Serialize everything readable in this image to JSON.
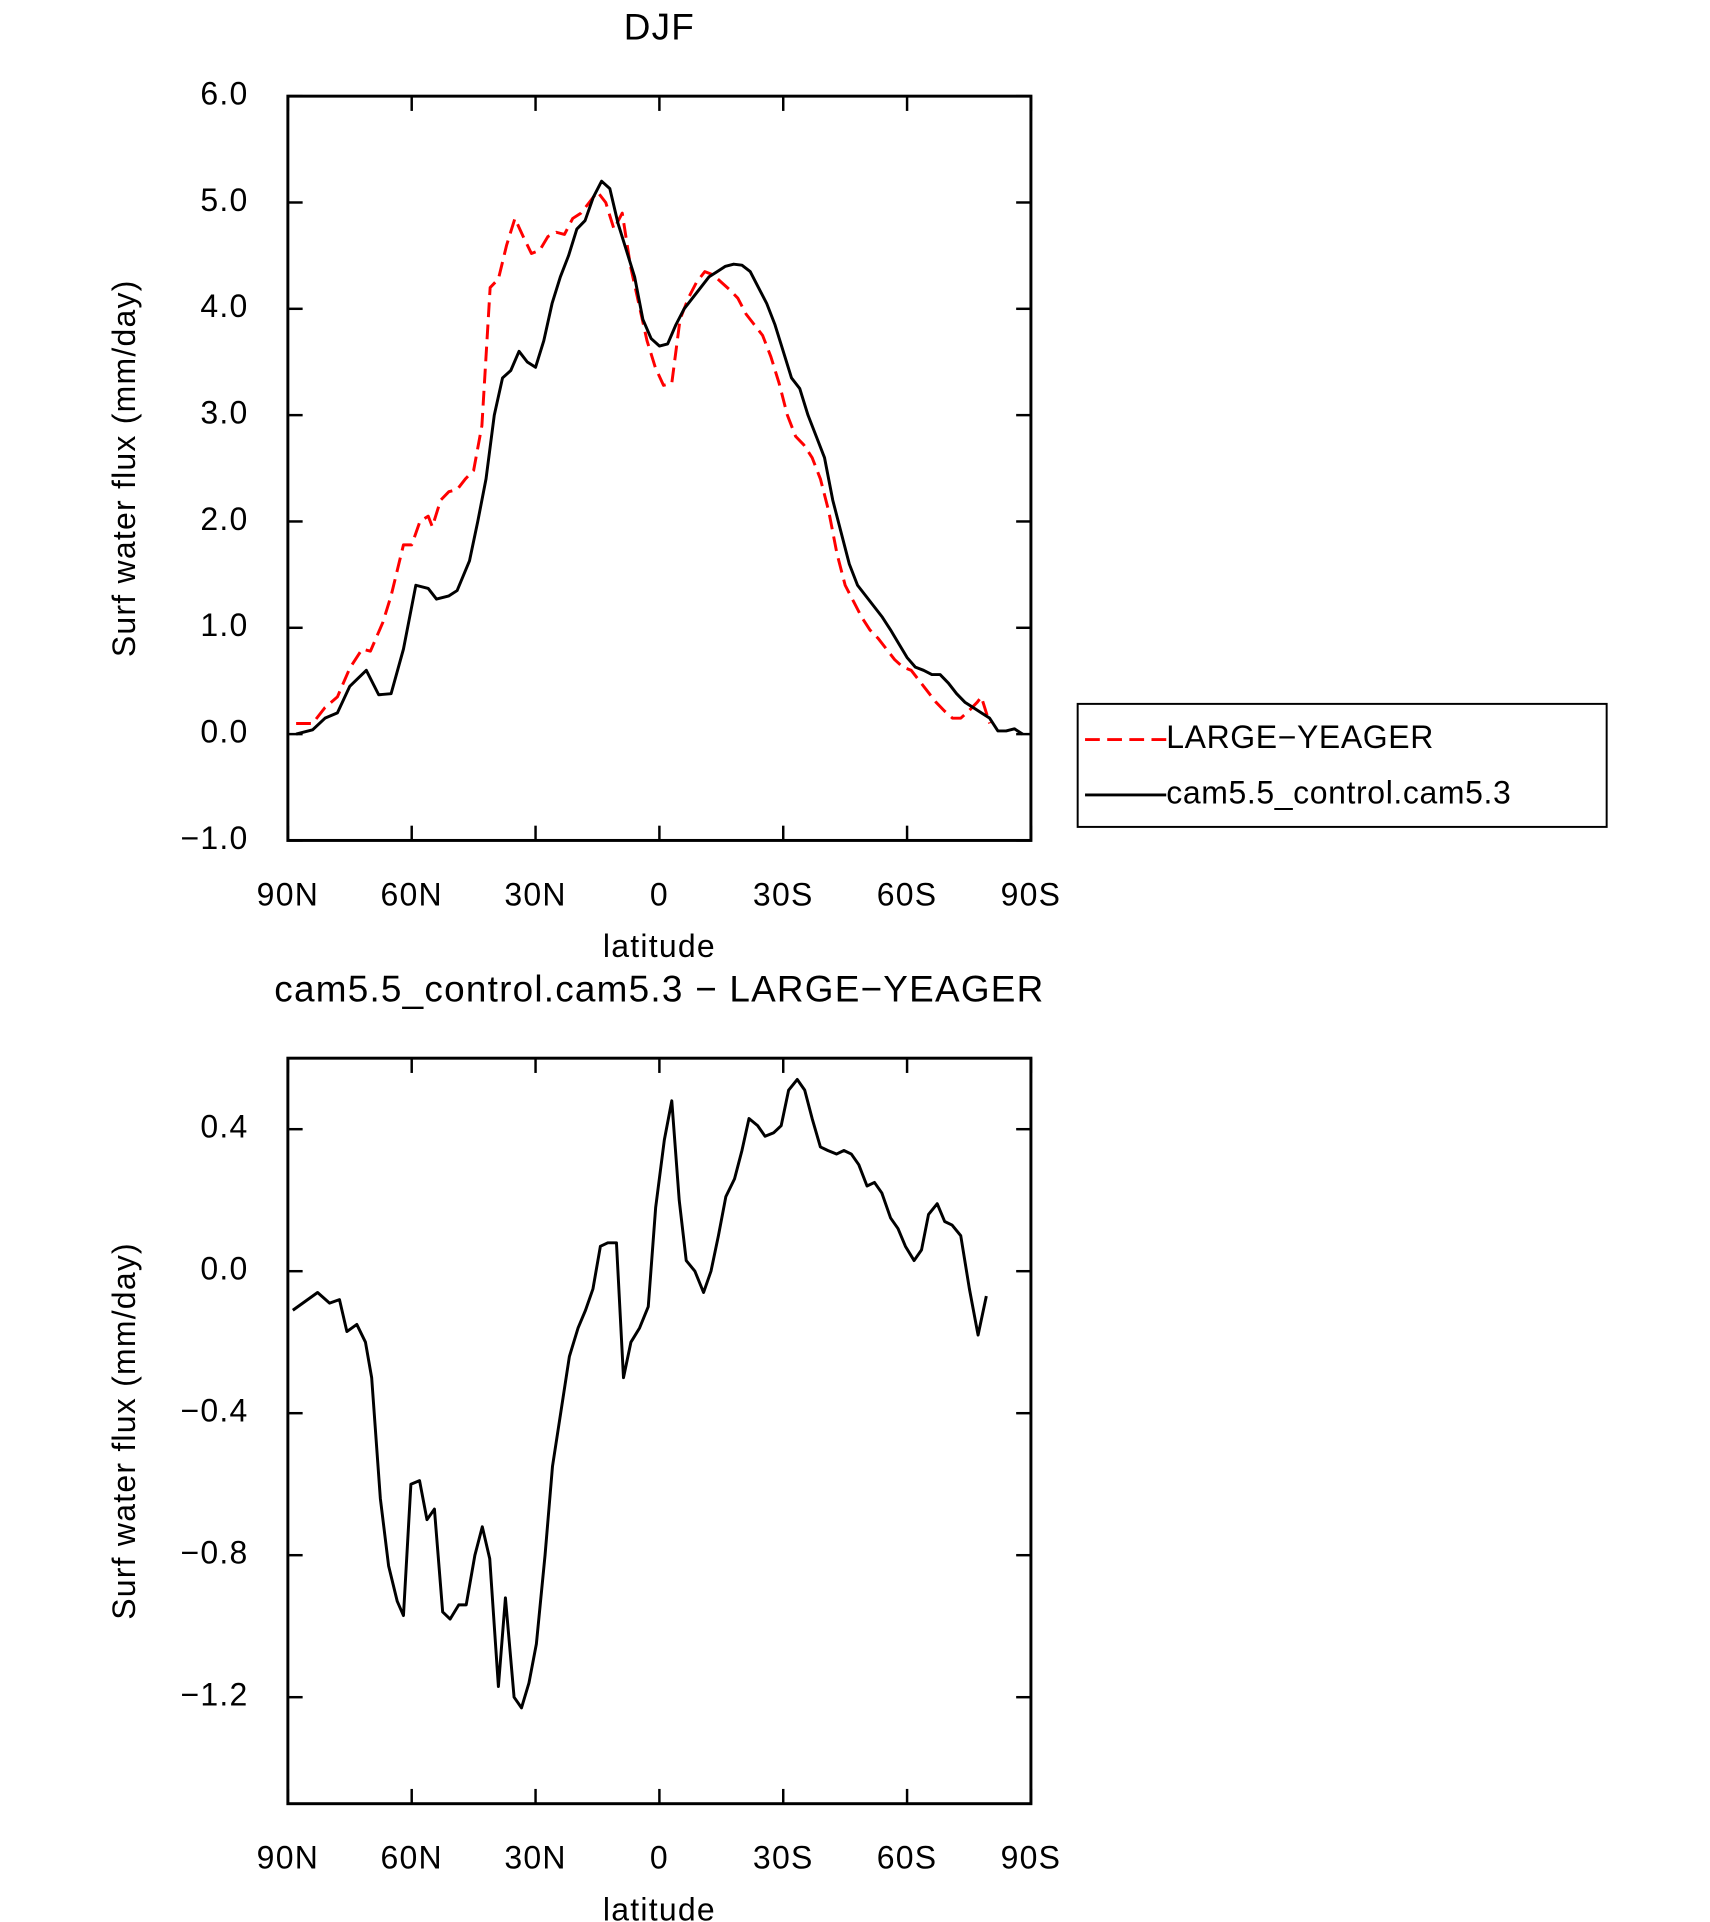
{
  "chart_data": [
    {
      "type": "line",
      "title": "DJF",
      "xlabel": "latitude",
      "ylabel": "Surf water flux (mm/day)",
      "xlim": [
        90,
        -90
      ],
      "xticks": [
        {
          "value": 90,
          "label": "90N"
        },
        {
          "value": 60,
          "label": "60N"
        },
        {
          "value": 30,
          "label": "30N"
        },
        0,
        {
          "value": -30,
          "label": "30S"
        },
        {
          "value": -60,
          "label": "60S"
        },
        {
          "value": -90,
          "label": "90S"
        }
      ],
      "ylim": [
        -1,
        6
      ],
      "yticks": [
        {
          "value": -1,
          "label": "−1.0"
        },
        {
          "value": 0,
          "label": "0.0"
        },
        {
          "value": 1,
          "label": "1.0"
        },
        {
          "value": 2,
          "label": "2.0"
        },
        {
          "value": 3,
          "label": "3.0"
        },
        {
          "value": 4,
          "label": "4.0"
        },
        {
          "value": 5,
          "label": "5.0"
        },
        {
          "value": 6,
          "label": "6.0"
        }
      ],
      "legend": "outside right",
      "series": [
        {
          "name": "LARGE−YEAGER",
          "color": "#ff0000",
          "line_style": "dashed",
          "x": [
            88,
            84,
            81,
            78,
            75,
            72,
            70,
            67,
            65,
            62,
            60,
            58,
            56,
            55,
            53,
            51,
            49,
            47,
            45,
            43,
            41,
            39,
            37,
            35,
            33,
            31,
            29,
            27,
            25,
            23,
            21,
            19,
            17,
            15,
            13,
            11,
            9,
            7,
            5,
            3,
            1,
            -1,
            -3,
            -5,
            -7,
            -9,
            -11,
            -13,
            -15,
            -17,
            -19,
            -21,
            -23,
            -25,
            -27,
            -29,
            -31,
            -33,
            -35,
            -37,
            -39,
            -41,
            -43,
            -45,
            -47,
            -49,
            -51,
            -53,
            -55,
            -57,
            -59,
            -61,
            -63,
            -65,
            -67,
            -69,
            -71,
            -73,
            -75,
            -77,
            -78,
            -80
          ],
          "values": [
            0.1,
            0.1,
            0.25,
            0.35,
            0.62,
            0.8,
            0.78,
            1.05,
            1.3,
            1.78,
            1.78,
            2.0,
            2.05,
            1.95,
            2.2,
            2.28,
            2.3,
            2.4,
            2.48,
            2.9,
            4.2,
            4.28,
            4.6,
            4.85,
            4.68,
            4.52,
            4.55,
            4.68,
            4.72,
            4.7,
            4.85,
            4.9,
            5.0,
            5.1,
            5.0,
            4.75,
            4.9,
            4.4,
            4.05,
            3.7,
            3.45,
            3.28,
            3.3,
            3.9,
            4.1,
            4.25,
            4.35,
            4.32,
            4.25,
            4.18,
            4.1,
            3.95,
            3.85,
            3.75,
            3.55,
            3.3,
            3.0,
            2.8,
            2.72,
            2.6,
            2.4,
            2.1,
            1.7,
            1.4,
            1.25,
            1.1,
            0.98,
            0.9,
            0.8,
            0.7,
            0.63,
            0.6,
            0.5,
            0.4,
            0.3,
            0.22,
            0.15,
            0.15,
            0.22,
            0.3,
            0.35,
            0.1
          ]
        },
        {
          "name": "cam5.5_control.cam5.3",
          "color": "#000000",
          "line_style": "solid",
          "x": [
            88,
            84,
            81,
            78,
            75,
            71,
            68,
            65,
            62,
            59,
            56,
            54,
            51,
            49,
            46,
            44,
            42,
            40,
            38,
            36,
            34,
            32,
            30,
            28,
            26,
            24,
            22,
            20,
            18,
            16,
            14,
            12,
            10,
            8,
            6,
            4,
            2,
            0,
            -2,
            -4,
            -6,
            -8,
            -10,
            -12,
            -14,
            -16,
            -18,
            -20,
            -22,
            -24,
            -26,
            -28,
            -30,
            -32,
            -34,
            -36,
            -38,
            -40,
            -42,
            -44,
            -46,
            -48,
            -50,
            -52,
            -54,
            -56,
            -58,
            -60,
            -62,
            -64,
            -66,
            -68,
            -70,
            -72,
            -74,
            -76,
            -78,
            -80,
            -82,
            -84,
            -86,
            -88
          ],
          "values": [
            0.0,
            0.04,
            0.15,
            0.2,
            0.45,
            0.6,
            0.37,
            0.38,
            0.8,
            1.4,
            1.37,
            1.27,
            1.3,
            1.35,
            1.63,
            2.0,
            2.4,
            3.0,
            3.35,
            3.42,
            3.6,
            3.5,
            3.45,
            3.7,
            4.05,
            4.3,
            4.5,
            4.75,
            4.83,
            5.05,
            5.2,
            5.13,
            4.8,
            4.55,
            4.3,
            3.9,
            3.72,
            3.65,
            3.67,
            3.85,
            4.0,
            4.1,
            4.2,
            4.3,
            4.35,
            4.4,
            4.42,
            4.41,
            4.35,
            4.2,
            4.05,
            3.85,
            3.6,
            3.35,
            3.25,
            3.0,
            2.8,
            2.6,
            2.2,
            1.9,
            1.6,
            1.4,
            1.3,
            1.2,
            1.1,
            0.98,
            0.85,
            0.72,
            0.63,
            0.6,
            0.56,
            0.56,
            0.48,
            0.38,
            0.3,
            0.25,
            0.2,
            0.15,
            0.03,
            0.03,
            0.05,
            0.0
          ]
        }
      ]
    },
    {
      "type": "line",
      "title": "cam5.5_control.cam5.3 − LARGE−YEAGER",
      "xlabel": "latitude",
      "ylabel": "Surf water flux (mm/day)",
      "xlim": [
        90,
        -90
      ],
      "xticks": [
        {
          "value": 90,
          "label": "90N"
        },
        {
          "value": 60,
          "label": "60N"
        },
        {
          "value": 30,
          "label": "30N"
        },
        0,
        {
          "value": -30,
          "label": "30S"
        },
        {
          "value": -60,
          "label": "60S"
        },
        {
          "value": -90,
          "label": "90S"
        }
      ],
      "ylim": [
        -1.5,
        0.6
      ],
      "yticks": [
        {
          "value": -1.2,
          "label": "−1.2"
        },
        {
          "value": -0.8,
          "label": "−0.8"
        },
        {
          "value": -0.4,
          "label": "−0.4"
        },
        {
          "value": 0,
          "label": "0.0"
        },
        0.4
      ],
      "series": [
        {
          "color": "#000000",
          "line_style": "solid",
          "x": [
            88.8,
            82.8,
            79.9,
            77.5,
            75.7,
            73.3,
            71.2,
            69.7,
            67.6,
            65.6,
            63.5,
            62,
            60.2,
            58.1,
            56.3,
            54.5,
            52.5,
            50.7,
            48.6,
            46.8,
            44.7,
            42.9,
            41.1,
            39,
            37.3,
            35.2,
            33.4,
            31.6,
            29.8,
            27.7,
            25.9,
            21.8,
            19.7,
            17.9,
            16.1,
            14.3,
            12.5,
            10.4,
            8.7,
            6.9,
            4.8,
            2.7,
            0.9,
            -1.2,
            -3,
            -4.8,
            -6.5,
            -8.6,
            -10.7,
            -12.5,
            -14.3,
            -16.1,
            -18.2,
            -20,
            -21.7,
            -23.8,
            -25.6,
            -27.7,
            -29.5,
            -31.3,
            -33.4,
            -35.2,
            -37,
            -39,
            -40.8,
            -42.9,
            -44.7,
            -46.5,
            -48.3,
            -50.3,
            -52.1,
            -53.9,
            -56,
            -57.8,
            -59.6,
            -61.7,
            -63.5,
            -65.2,
            -67.3,
            -69.1,
            -70.9,
            -73,
            -75.1,
            -77.2,
            -79.2
          ],
          "values": [
            -0.11,
            -0.06,
            -0.09,
            -0.08,
            -0.17,
            -0.15,
            -0.2,
            -0.3,
            -0.64,
            -0.83,
            -0.93,
            -0.97,
            -0.6,
            -0.59,
            -0.7,
            -0.67,
            -0.96,
            -0.98,
            -0.94,
            -0.94,
            -0.8,
            -0.72,
            -0.81,
            -1.17,
            -0.92,
            -1.2,
            -1.23,
            -1.16,
            -1.05,
            -0.8,
            -0.55,
            -0.24,
            -0.16,
            -0.11,
            -0.05,
            0.07,
            0.08,
            0.08,
            -0.3,
            -0.2,
            -0.16,
            -0.1,
            0.18,
            0.37,
            0.48,
            0.2,
            0.03,
            0.0,
            -0.06,
            0.0,
            0.1,
            0.21,
            0.26,
            0.34,
            0.43,
            0.41,
            0.38,
            0.39,
            0.41,
            0.51,
            0.54,
            0.51,
            0.43,
            0.35,
            0.34,
            0.33,
            0.34,
            0.33,
            0.3,
            0.24,
            0.25,
            0.22,
            0.15,
            0.12,
            0.07,
            0.03,
            0.06,
            0.16,
            0.19,
            0.14,
            0.13,
            0.1,
            -0.05,
            -0.18,
            -0.07
          ]
        }
      ]
    }
  ]
}
